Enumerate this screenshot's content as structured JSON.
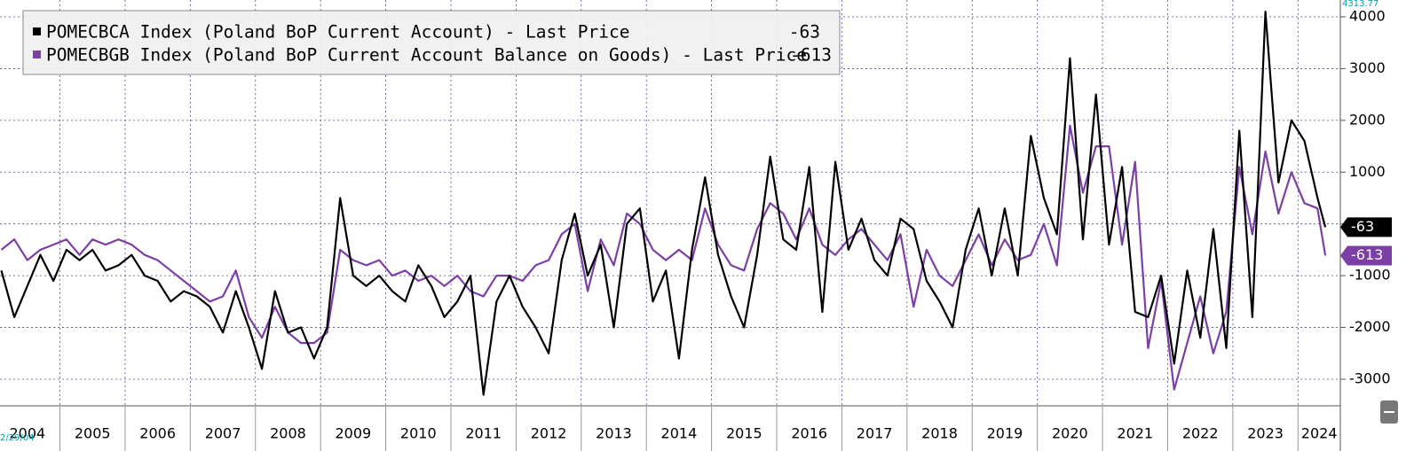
{
  "chart_data": {
    "type": "line",
    "series": [
      {
        "name": "POMECBCA Index (Poland BoP Current Account) - Last Price",
        "color": "#000000",
        "values": [
          -900,
          -1800,
          -1200,
          -600,
          -1100,
          -500,
          -700,
          -500,
          -900,
          -800,
          -600,
          -1000,
          -1100,
          -1500,
          -1300,
          -1400,
          -1600,
          -2100,
          -1300,
          -2000,
          -2800,
          -1300,
          -2100,
          -2000,
          -2600,
          -2000,
          500,
          -1000,
          -1200,
          -1000,
          -1300,
          -1500,
          -800,
          -1200,
          -1800,
          -1500,
          -1000,
          -3300,
          -1500,
          -1000,
          -1600,
          -2000,
          -2500,
          -700,
          200,
          -1000,
          -400,
          -2000,
          0,
          300,
          -1500,
          -900,
          -2600,
          -500,
          900,
          -600,
          -1400,
          -2000,
          -600,
          1300,
          -300,
          -500,
          1100,
          -1700,
          1200,
          -500,
          100,
          -700,
          -1000,
          100,
          -100,
          -1100,
          -1500,
          -2000,
          -500,
          300,
          -1000,
          300,
          -1000,
          1700,
          500,
          -200,
          3200,
          -300,
          2500,
          -400,
          1100,
          -1700,
          -1800,
          -1000,
          -2700,
          -900,
          -2200,
          -100,
          -2400,
          1800,
          -1800,
          4100,
          800,
          2000,
          1600,
          500,
          -63
        ]
      },
      {
        "name": "POMECBGB Index (Poland BoP Current Account Balance on Goods) - Last Price",
        "color": "#7b3fa6",
        "values": [
          -500,
          -300,
          -700,
          -500,
          -400,
          -300,
          -600,
          -300,
          -400,
          -300,
          -400,
          -600,
          -700,
          -900,
          -1100,
          -1300,
          -1500,
          -1400,
          -900,
          -1800,
          -2200,
          -1600,
          -2100,
          -2300,
          -2300,
          -2100,
          -500,
          -700,
          -800,
          -700,
          -1000,
          -900,
          -1100,
          -1000,
          -1200,
          -1000,
          -1300,
          -1400,
          -1000,
          -1000,
          -1100,
          -800,
          -700,
          -200,
          0,
          -1300,
          -300,
          -800,
          200,
          0,
          -500,
          -700,
          -500,
          -700,
          300,
          -400,
          -800,
          -900,
          -100,
          400,
          200,
          -300,
          300,
          -400,
          -600,
          -300,
          -100,
          -400,
          -700,
          -200,
          -1600,
          -500,
          -1000,
          -1200,
          -700,
          -200,
          -800,
          -300,
          -700,
          -600,
          0,
          -800,
          1900,
          600,
          1500,
          1500,
          -400,
          1200,
          -2400,
          -1100,
          -3200,
          -2300,
          -1400,
          -2500,
          -1700,
          1100,
          -200,
          1400,
          200,
          1000,
          400,
          300,
          -613
        ]
      }
    ],
    "x": [
      2004.1,
      2004.3,
      2004.5,
      2004.7,
      2004.9,
      2005.1,
      2005.3,
      2005.5,
      2005.7,
      2005.9,
      2006.1,
      2006.3,
      2006.5,
      2006.7,
      2006.9,
      2007.1,
      2007.3,
      2007.5,
      2007.7,
      2007.9,
      2008.1,
      2008.3,
      2008.5,
      2008.7,
      2008.9,
      2009.1,
      2009.3,
      2009.5,
      2009.7,
      2009.9,
      2010.1,
      2010.3,
      2010.5,
      2010.7,
      2010.9,
      2011.1,
      2011.3,
      2011.5,
      2011.7,
      2011.9,
      2012.1,
      2012.3,
      2012.5,
      2012.7,
      2012.9,
      2013.1,
      2013.3,
      2013.5,
      2013.7,
      2013.9,
      2014.1,
      2014.3,
      2014.5,
      2014.7,
      2014.9,
      2015.1,
      2015.3,
      2015.5,
      2015.7,
      2015.9,
      2016.1,
      2016.3,
      2016.5,
      2016.7,
      2016.9,
      2017.1,
      2017.3,
      2017.5,
      2017.7,
      2017.9,
      2018.1,
      2018.3,
      2018.5,
      2018.7,
      2018.9,
      2019.1,
      2019.3,
      2019.5,
      2019.7,
      2019.9,
      2020.1,
      2020.3,
      2020.5,
      2020.7,
      2020.9,
      2021.1,
      2021.3,
      2021.5,
      2021.7,
      2021.9,
      2022.1,
      2022.3,
      2022.5,
      2022.7,
      2022.9,
      2023.1,
      2023.3,
      2023.5,
      2023.7,
      2023.9,
      2024.1,
      2024.3,
      2024.42
    ],
    "xlim": [
      2004.08,
      2024.65
    ],
    "xticks": [
      2004,
      2005,
      2006,
      2007,
      2008,
      2009,
      2010,
      2011,
      2012,
      2013,
      2014,
      2015,
      2016,
      2017,
      2018,
      2019,
      2020,
      2021,
      2022,
      2023,
      2024
    ],
    "ylim": [
      -3514,
      4325
    ],
    "yticks": [
      -3000,
      -2000,
      -1000,
      0,
      1000,
      2000,
      3000,
      4000
    ],
    "grid": true,
    "legend": "upper left",
    "annotations": [
      "4313.77",
      "2/29/04"
    ]
  }
}
